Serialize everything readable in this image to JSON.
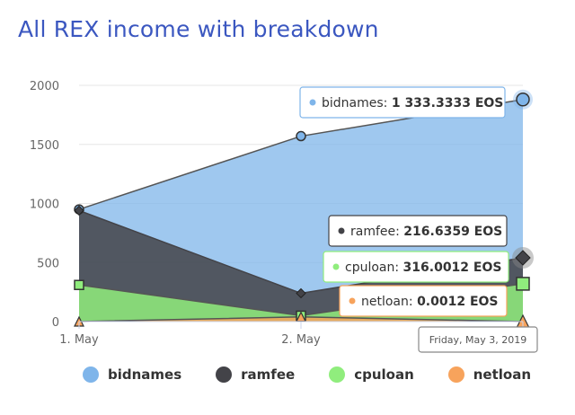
{
  "title": "All REX income with breakdown",
  "chart_data": {
    "type": "area",
    "categories": [
      "1. May",
      "2. May",
      "3. May"
    ],
    "ylim": [
      0,
      2000
    ],
    "yticks": [
      0,
      500,
      1000,
      1500,
      2000
    ],
    "series": [
      {
        "name": "bidnames",
        "color": "#7fb5ea",
        "values": [
          950,
          1570,
          1880
        ]
      },
      {
        "name": "ramfee",
        "color": "#434348",
        "values": [
          940,
          240,
          540
        ]
      },
      {
        "name": "cpuloan",
        "color": "#90ed7d",
        "values": [
          310,
          50,
          320
        ]
      },
      {
        "name": "netloan",
        "color": "#f7a35c",
        "values": [
          0,
          40,
          0
        ]
      }
    ]
  },
  "tooltips": {
    "bidnames": {
      "label": "bidnames:",
      "value": "1 333.3333 EOS"
    },
    "ramfee": {
      "label": "ramfee:",
      "value": "216.6359 EOS"
    },
    "cpuloan": {
      "label": "cpuloan:",
      "value": "316.0012 EOS"
    },
    "netloan": {
      "label": "netloan:",
      "value": "0.0012 EOS"
    },
    "date": "Friday, May 3, 2019"
  }
}
